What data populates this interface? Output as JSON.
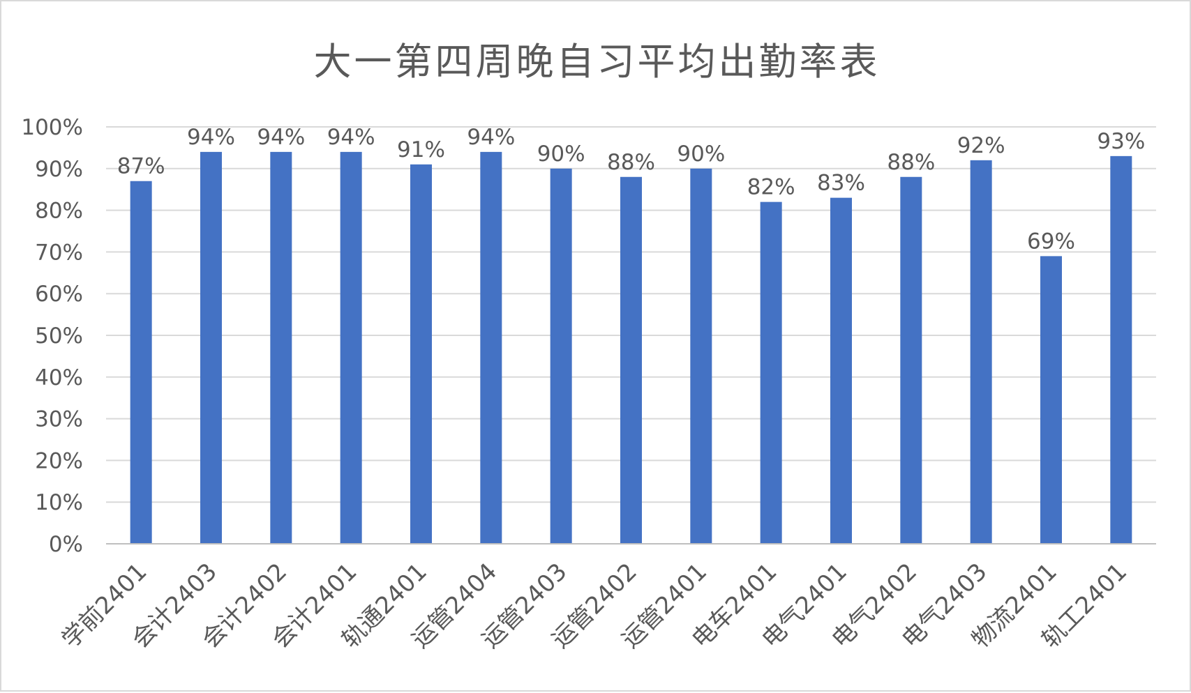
{
  "chart_data": {
    "type": "bar",
    "title": "大一第四周晚自习平均出勤率表",
    "xlabel": "",
    "ylabel": "",
    "categories": [
      "学前2401",
      "会计2403",
      "会计2402",
      "会计2401",
      "轨通2401",
      "运管2404",
      "运管2403",
      "运管2402",
      "运管2401",
      "电车2401",
      "电气2401",
      "电气2402",
      "电气2403",
      "物流2401",
      "轨工2401"
    ],
    "values": [
      87,
      94,
      94,
      94,
      91,
      94,
      90,
      88,
      90,
      82,
      83,
      88,
      92,
      69,
      93
    ],
    "data_labels": [
      "87%",
      "94%",
      "94%",
      "94%",
      "91%",
      "94%",
      "90%",
      "88%",
      "90%",
      "82%",
      "83%",
      "88%",
      "92%",
      "69%",
      "93%"
    ],
    "ylim": [
      0,
      100
    ],
    "yticks": [
      "0%",
      "10%",
      "20%",
      "30%",
      "40%",
      "50%",
      "60%",
      "70%",
      "80%",
      "90%",
      "100%"
    ],
    "grid": true,
    "legend": "none",
    "colors": {
      "bar": "#4472c4",
      "grid": "#d9d9d9",
      "text": "#595959"
    }
  }
}
